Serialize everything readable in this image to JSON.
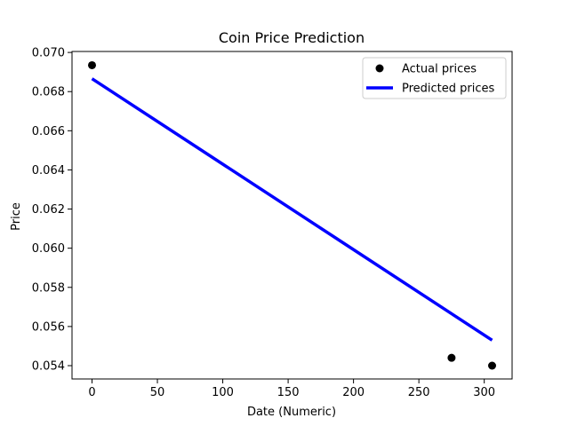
{
  "chart_data": {
    "type": "scatter",
    "title": "Coin Price Prediction",
    "xlabel": "Date (Numeric)",
    "ylabel": "Price",
    "xlim": [
      -15.3,
      321.3
    ],
    "ylim": [
      0.05332,
      0.07005
    ],
    "x_ticks": [
      0,
      50,
      100,
      150,
      200,
      250,
      300
    ],
    "y_ticks": [
      0.054,
      0.056,
      0.058,
      0.06,
      0.062,
      0.064,
      0.066,
      0.068,
      0.07
    ],
    "x_tick_labels": [
      "0",
      "50",
      "100",
      "150",
      "200",
      "250",
      "300"
    ],
    "y_tick_labels": [
      "0.054",
      "0.056",
      "0.058",
      "0.060",
      "0.062",
      "0.064",
      "0.066",
      "0.068",
      "0.070"
    ],
    "grid": false,
    "legend_position": "top-right",
    "series": [
      {
        "name": "Actual prices",
        "kind": "scatter",
        "color": "#000000",
        "points": [
          {
            "x": 0,
            "y": 0.06935
          },
          {
            "x": 275,
            "y": 0.0544
          },
          {
            "x": 306,
            "y": 0.054
          }
        ]
      },
      {
        "name": "Predicted prices",
        "kind": "line",
        "color": "#0000ff",
        "points": [
          {
            "x": 0,
            "y": 0.06866
          },
          {
            "x": 306,
            "y": 0.0553
          }
        ]
      }
    ]
  }
}
